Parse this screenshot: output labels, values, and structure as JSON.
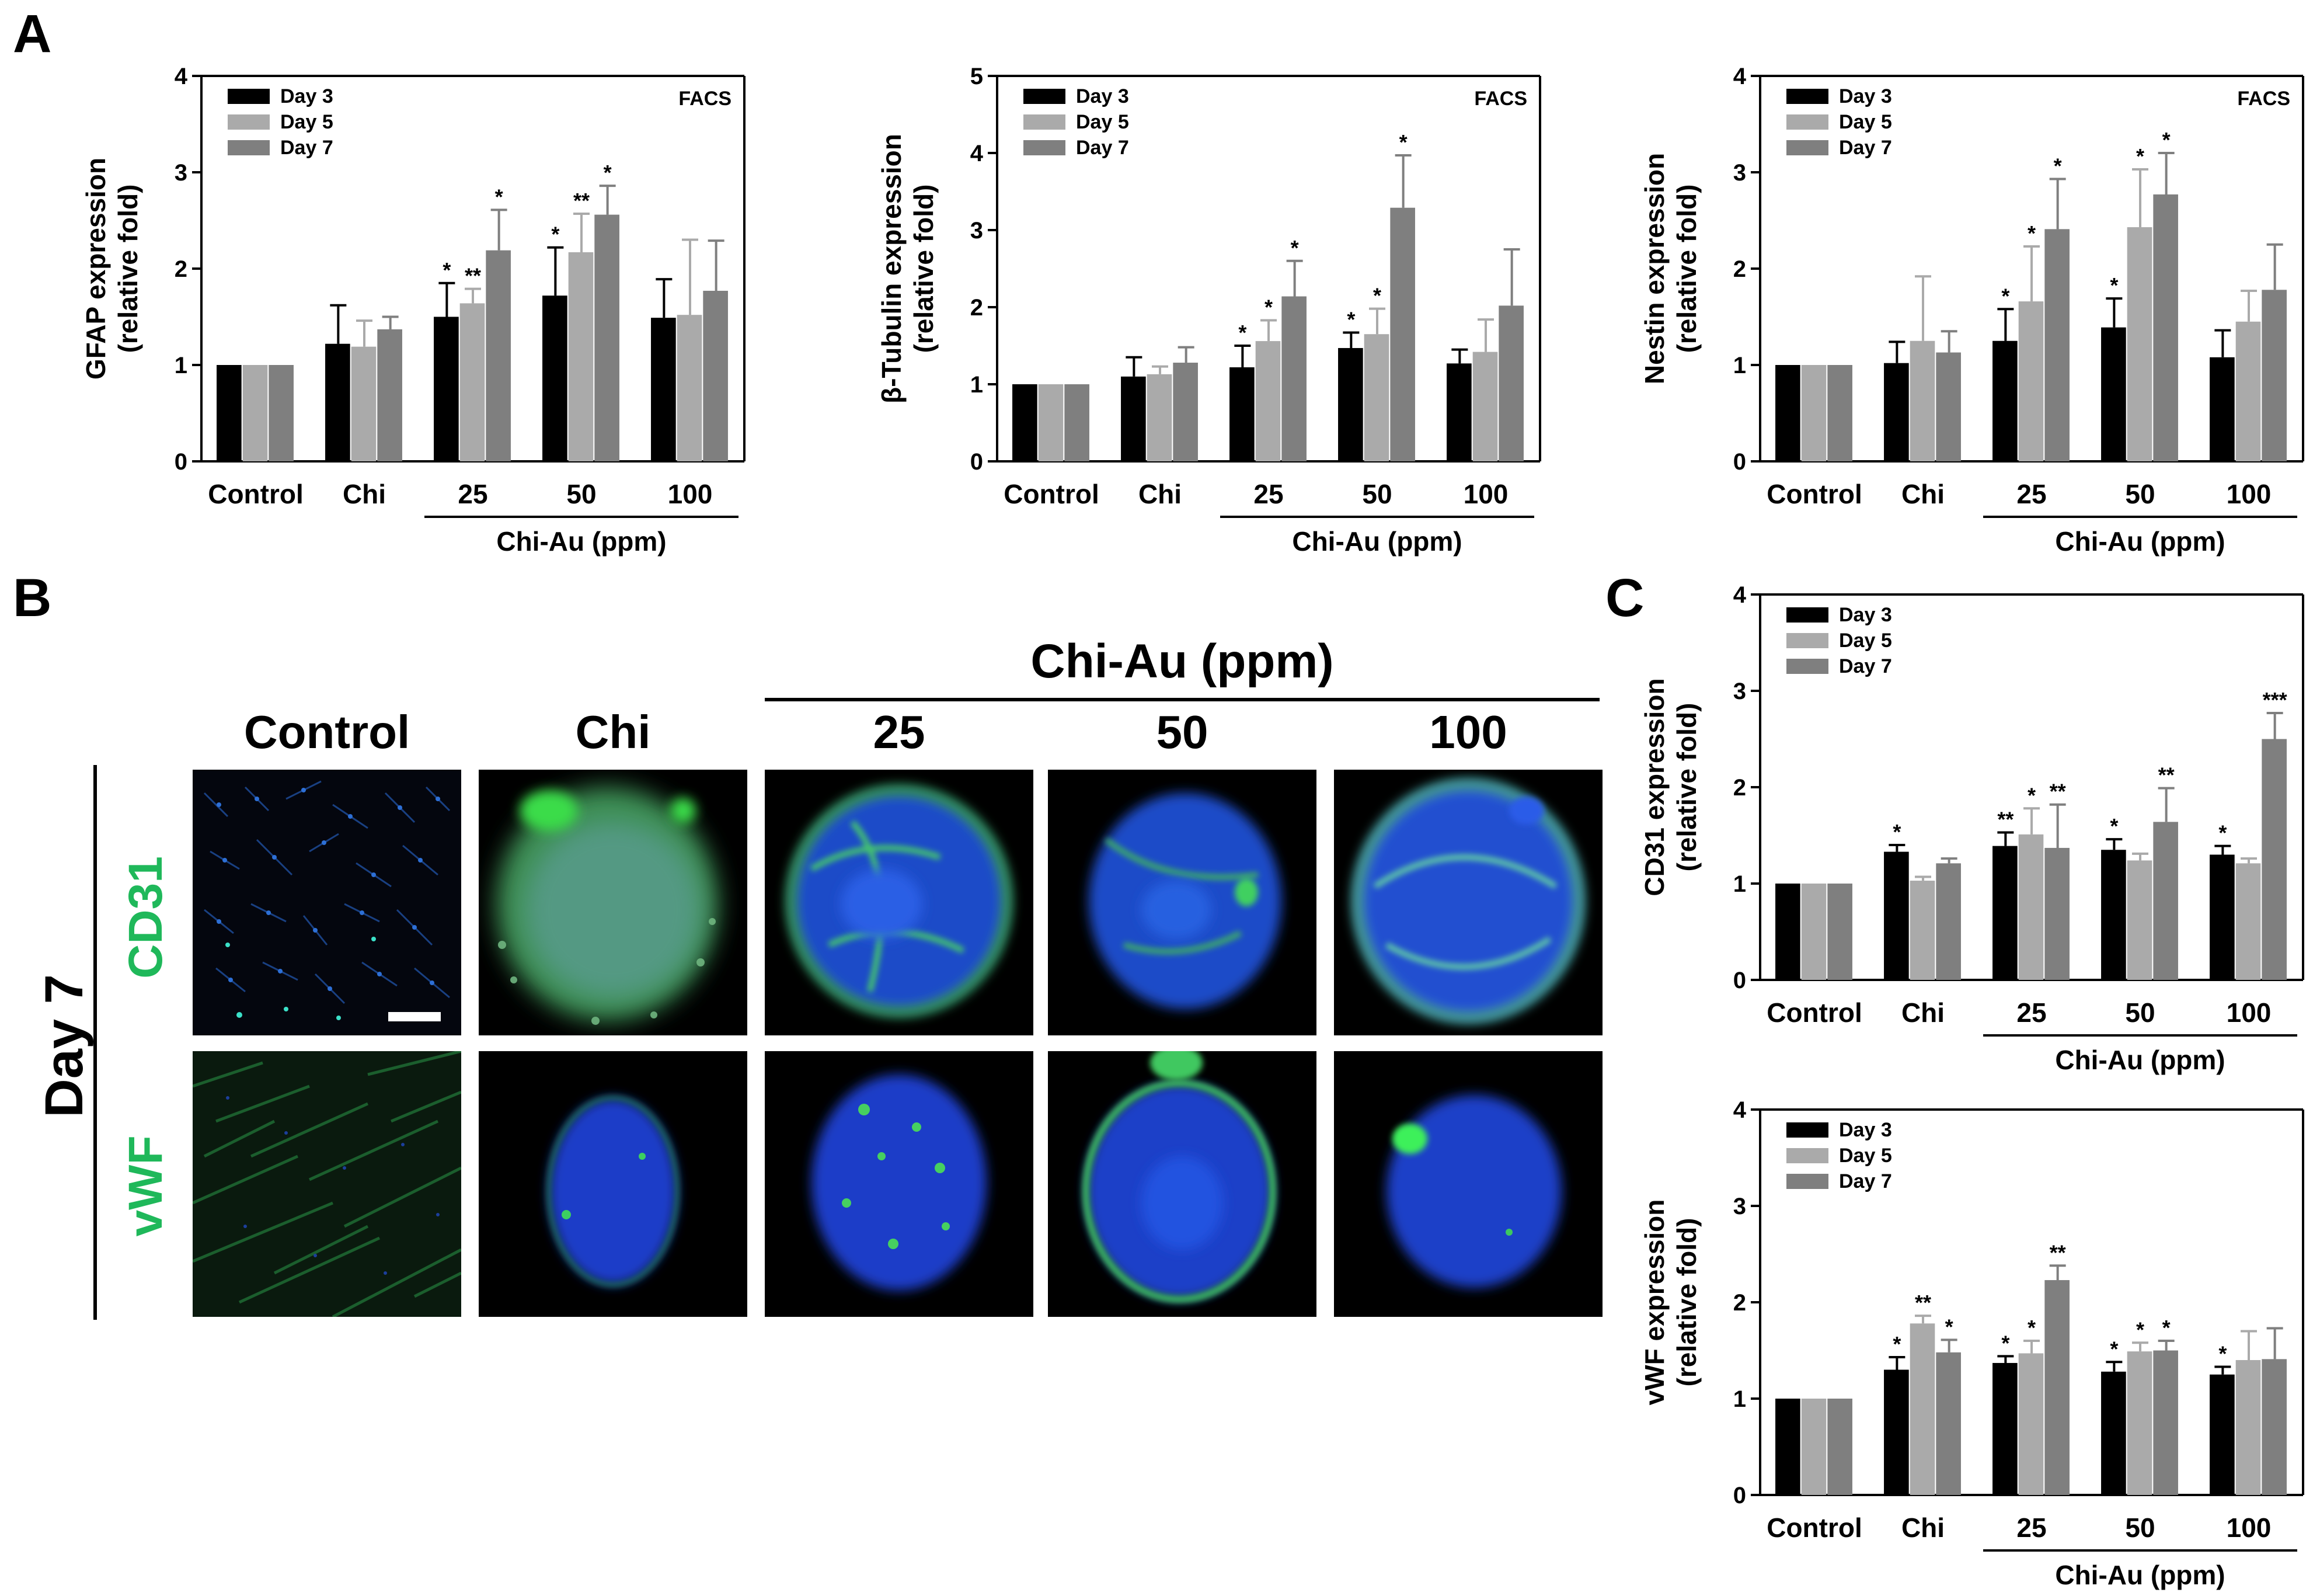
{
  "panel_labels": {
    "a": "A",
    "b": "B",
    "c": "C"
  },
  "legend_labels": [
    "Day 3",
    "Day 5",
    "Day 7"
  ],
  "colors": {
    "day3": "#000000",
    "day5": "#aaaaaa",
    "day7": "#7f7f7f",
    "stain_green": "#1fb85a"
  },
  "chart_data": [
    {
      "id": "gfap",
      "type": "bar",
      "ylabel_line1": "GFAP expression",
      "ylabel_line2": "(relative fold)",
      "annotation": "FACS",
      "categories": [
        "Control",
        "Chi",
        "25",
        "50",
        "100"
      ],
      "group_label": "Chi-Au (ppm)",
      "ylim": [
        0,
        4
      ],
      "yticks": [
        "0",
        "1",
        "2",
        "3",
        "4"
      ],
      "series": [
        {
          "name": "Day 3",
          "values": [
            1.0,
            1.22,
            1.5,
            1.72,
            1.49
          ],
          "errors": [
            0,
            0.4,
            0.35,
            0.5,
            0.4
          ],
          "sig": [
            "",
            "",
            "*",
            "*",
            ""
          ]
        },
        {
          "name": "Day 5",
          "values": [
            1.0,
            1.19,
            1.64,
            2.17,
            1.52
          ],
          "errors": [
            0,
            0.27,
            0.15,
            0.4,
            0.78
          ],
          "sig": [
            "",
            "",
            "**",
            "**",
            ""
          ]
        },
        {
          "name": "Day 7",
          "values": [
            1.0,
            1.37,
            2.19,
            2.56,
            1.77
          ],
          "errors": [
            0,
            0.13,
            0.42,
            0.3,
            0.52
          ],
          "sig": [
            "",
            "",
            "*",
            "*",
            ""
          ]
        }
      ]
    },
    {
      "id": "btub",
      "type": "bar",
      "ylabel_line1": "β-Tubulin expression",
      "ylabel_line2": "(relative fold)",
      "annotation": "FACS",
      "categories": [
        "Control",
        "Chi",
        "25",
        "50",
        "100"
      ],
      "group_label": "Chi-Au (ppm)",
      "ylim": [
        0,
        5
      ],
      "yticks": [
        "0",
        "1",
        "2",
        "3",
        "4",
        "5"
      ],
      "series": [
        {
          "name": "Day 3",
          "values": [
            1.0,
            1.1,
            1.22,
            1.47,
            1.27
          ],
          "errors": [
            0,
            0.25,
            0.28,
            0.2,
            0.18
          ],
          "sig": [
            "",
            "",
            "*",
            "*",
            ""
          ]
        },
        {
          "name": "Day 5",
          "values": [
            1.0,
            1.13,
            1.56,
            1.65,
            1.42
          ],
          "errors": [
            0,
            0.1,
            0.27,
            0.33,
            0.42
          ],
          "sig": [
            "",
            "",
            "*",
            "*",
            ""
          ]
        },
        {
          "name": "Day 7",
          "values": [
            1.0,
            1.28,
            2.14,
            3.29,
            2.02
          ],
          "errors": [
            0,
            0.2,
            0.46,
            0.68,
            0.73
          ],
          "sig": [
            "",
            "",
            "*",
            "*",
            ""
          ]
        }
      ]
    },
    {
      "id": "nestin",
      "type": "bar",
      "ylabel_line1": "Nestin expression",
      "ylabel_line2": "(relative fold)",
      "annotation": "FACS",
      "categories": [
        "Control",
        "Chi",
        "25",
        "50",
        "100"
      ],
      "group_label": "Chi-Au (ppm)",
      "ylim": [
        0,
        4
      ],
      "yticks": [
        "0",
        "1",
        "2",
        "3",
        "4"
      ],
      "series": [
        {
          "name": "Day 3",
          "values": [
            1.0,
            1.02,
            1.25,
            1.39,
            1.08
          ],
          "errors": [
            0,
            0.22,
            0.33,
            0.3,
            0.28
          ],
          "sig": [
            "",
            "",
            "*",
            "*",
            ""
          ]
        },
        {
          "name": "Day 5",
          "values": [
            1.0,
            1.25,
            1.66,
            2.43,
            1.45
          ],
          "errors": [
            0,
            0.67,
            0.57,
            0.6,
            0.32
          ],
          "sig": [
            "",
            "",
            "*",
            "*",
            ""
          ]
        },
        {
          "name": "Day 7",
          "values": [
            1.0,
            1.13,
            2.41,
            2.77,
            1.78
          ],
          "errors": [
            0,
            0.22,
            0.52,
            0.43,
            0.47
          ],
          "sig": [
            "",
            "",
            "*",
            "*",
            ""
          ]
        }
      ]
    },
    {
      "id": "cd31",
      "type": "bar",
      "ylabel_line1": "CD31 expression",
      "ylabel_line2": "(relative fold)",
      "annotation": "",
      "categories": [
        "Control",
        "Chi",
        "25",
        "50",
        "100"
      ],
      "group_label": "Chi-Au (ppm)",
      "ylim": [
        0,
        4
      ],
      "yticks": [
        "0",
        "1",
        "2",
        "3",
        "4"
      ],
      "series": [
        {
          "name": "Day 3",
          "values": [
            1.0,
            1.33,
            1.39,
            1.35,
            1.3
          ],
          "errors": [
            0,
            0.07,
            0.14,
            0.11,
            0.09
          ],
          "sig": [
            "",
            "*",
            "**",
            "*",
            "*"
          ]
        },
        {
          "name": "Day 5",
          "values": [
            1.0,
            1.03,
            1.51,
            1.24,
            1.21
          ],
          "errors": [
            0,
            0.04,
            0.27,
            0.07,
            0.05
          ],
          "sig": [
            "",
            "",
            "*",
            "",
            ""
          ]
        },
        {
          "name": "Day 7",
          "values": [
            1.0,
            1.21,
            1.37,
            1.64,
            2.5
          ],
          "errors": [
            0,
            0.05,
            0.45,
            0.35,
            0.27
          ],
          "sig": [
            "",
            "",
            "**",
            "**",
            "***"
          ]
        }
      ]
    },
    {
      "id": "vwf",
      "type": "bar",
      "ylabel_line1": "vWF expression",
      "ylabel_line2": "(relative fold)",
      "annotation": "",
      "categories": [
        "Control",
        "Chi",
        "25",
        "50",
        "100"
      ],
      "group_label": "Chi-Au (ppm)",
      "ylim": [
        0,
        4
      ],
      "yticks": [
        "0",
        "1",
        "2",
        "3",
        "4"
      ],
      "series": [
        {
          "name": "Day 3",
          "values": [
            1.0,
            1.3,
            1.37,
            1.28,
            1.25
          ],
          "errors": [
            0,
            0.13,
            0.07,
            0.1,
            0.08
          ],
          "sig": [
            "",
            "*",
            "*",
            "*",
            "*"
          ]
        },
        {
          "name": "Day 5",
          "values": [
            1.0,
            1.78,
            1.47,
            1.49,
            1.4
          ],
          "errors": [
            0,
            0.08,
            0.13,
            0.09,
            0.3
          ],
          "sig": [
            "",
            "**",
            "*",
            "*",
            ""
          ]
        },
        {
          "name": "Day 7",
          "values": [
            1.0,
            1.48,
            2.23,
            1.5,
            1.41
          ],
          "errors": [
            0,
            0.13,
            0.15,
            0.1,
            0.32
          ],
          "sig": [
            "",
            "*",
            "**",
            "*",
            ""
          ]
        }
      ]
    }
  ],
  "micrographs": {
    "group_header": "Chi-Au (ppm)",
    "column_headers": [
      "Control",
      "Chi",
      "25",
      "50",
      "100"
    ],
    "row_labels": [
      "CD31",
      "vWF"
    ],
    "day_label": "Day 7"
  }
}
